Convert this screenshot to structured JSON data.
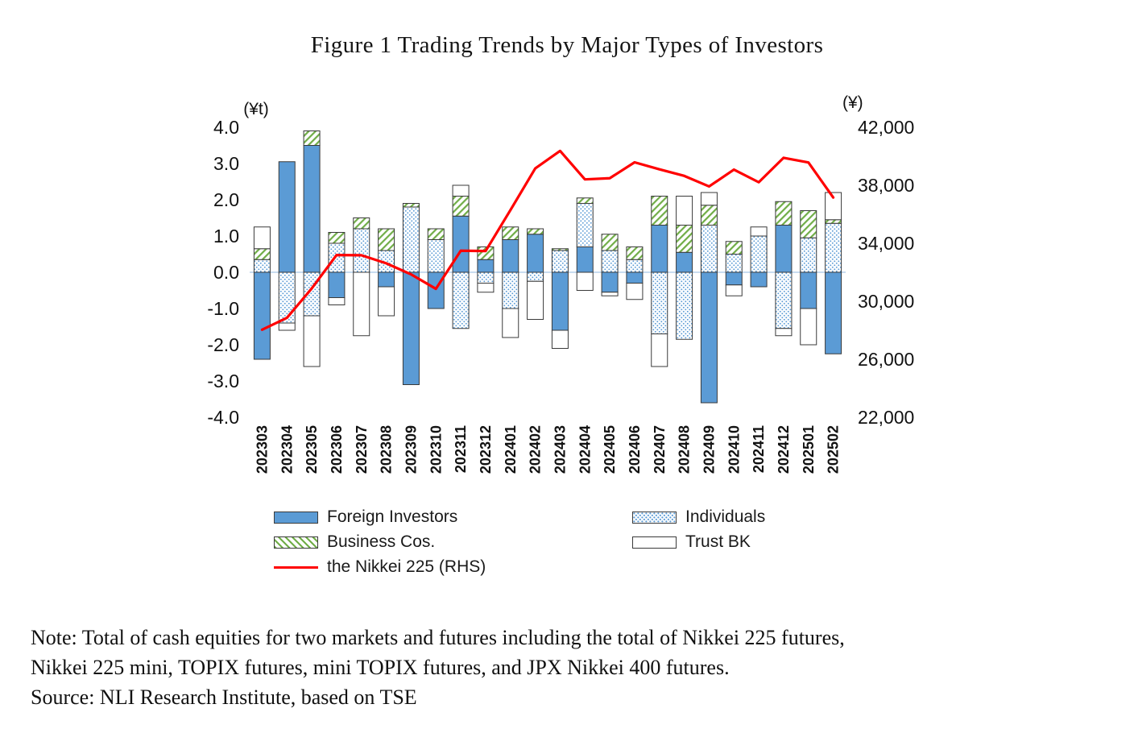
{
  "title": "Figure 1 Trading Trends by Major Types of Investors",
  "chart_data": {
    "type": "bar",
    "subtype": "stacked-bars-with-line-overlay",
    "left_axis": {
      "label": "(¥t)",
      "min": -4,
      "max": 4,
      "ticks": [
        "4.0",
        "3.0",
        "2.0",
        "1.0",
        "0.0",
        "-1.0",
        "-2.0",
        "-3.0",
        "-4.0"
      ]
    },
    "right_axis": {
      "label": "(¥)",
      "min": 22000,
      "max": 42000,
      "ticks": [
        "42,000",
        "38,000",
        "34,000",
        "30,000",
        "26,000",
        "22,000"
      ]
    },
    "categories": [
      "202303",
      "202304",
      "202305",
      "202306",
      "202307",
      "202308",
      "202309",
      "202310",
      "202311",
      "202312",
      "202401",
      "202402",
      "202403",
      "202404",
      "202405",
      "202406",
      "202407",
      "202408",
      "202409",
      "202410",
      "202411",
      "202412",
      "202501",
      "202502"
    ],
    "series": [
      {
        "name": "Foreign Investors",
        "style": "solid",
        "color": "#5B9BD5",
        "values": [
          -2.4,
          3.05,
          3.5,
          -0.7,
          0,
          -0.4,
          -3.1,
          -1.0,
          1.55,
          0.35,
          0.9,
          1.05,
          -1.6,
          0.7,
          -0.55,
          -0.3,
          1.3,
          0.55,
          -3.6,
          -0.35,
          -0.4,
          1.3,
          -1.0,
          -2.25
        ]
      },
      {
        "name": "Individuals",
        "style": "dots",
        "color": "#5B9BD5",
        "values": [
          0.35,
          -1.4,
          -1.2,
          0.8,
          1.2,
          0.6,
          1.8,
          0.9,
          -1.55,
          -0.3,
          -1.0,
          -0.25,
          0.6,
          1.2,
          0.6,
          0.35,
          -1.7,
          -1.85,
          1.3,
          0.5,
          1.0,
          -1.55,
          0.95,
          1.35
        ]
      },
      {
        "name": "Business Cos.",
        "style": "hatch",
        "color": "#70AD47",
        "values": [
          0.3,
          0,
          0.4,
          0.3,
          0.3,
          0.6,
          0.1,
          0.3,
          0.55,
          0.35,
          0.35,
          0.15,
          0.05,
          0.15,
          0.45,
          0.35,
          0.8,
          0.75,
          0.55,
          0.35,
          0,
          0.65,
          0.75,
          0.1
        ]
      },
      {
        "name": "Trust BK",
        "style": "white",
        "color": "#FFFFFF",
        "values": [
          0.6,
          -0.2,
          -1.4,
          -0.2,
          -1.75,
          -0.8,
          0,
          0,
          0.3,
          -0.25,
          -0.8,
          -1.05,
          -0.5,
          -0.5,
          -0.1,
          -0.45,
          -0.9,
          0.8,
          0.35,
          -0.3,
          0.25,
          -0.2,
          -1.0,
          0.75
        ]
      }
    ],
    "line": {
      "name": "the Nikkei 225 (RHS)",
      "color": "#FF0000",
      "axis": "right",
      "values": [
        28041,
        28856,
        30887,
        33189,
        33172,
        32619,
        31857,
        30858,
        33486,
        33464,
        36286,
        39166,
        40369,
        38405,
        38487,
        39583,
        39101,
        38647,
        37919,
        39081,
        38208,
        39894,
        39572,
        37155
      ]
    },
    "grid": "zero-line-only",
    "legend_position": "below"
  },
  "notes": {
    "line1": "Note: Total of cash equities for two markets and futures including the total of Nikkei 225 futures,",
    "line2": "Nikkei 225 mini, TOPIX futures, mini TOPIX futures, and JPX Nikkei 400 futures.",
    "line3": "Source: NLI Research Institute, based on TSE"
  }
}
